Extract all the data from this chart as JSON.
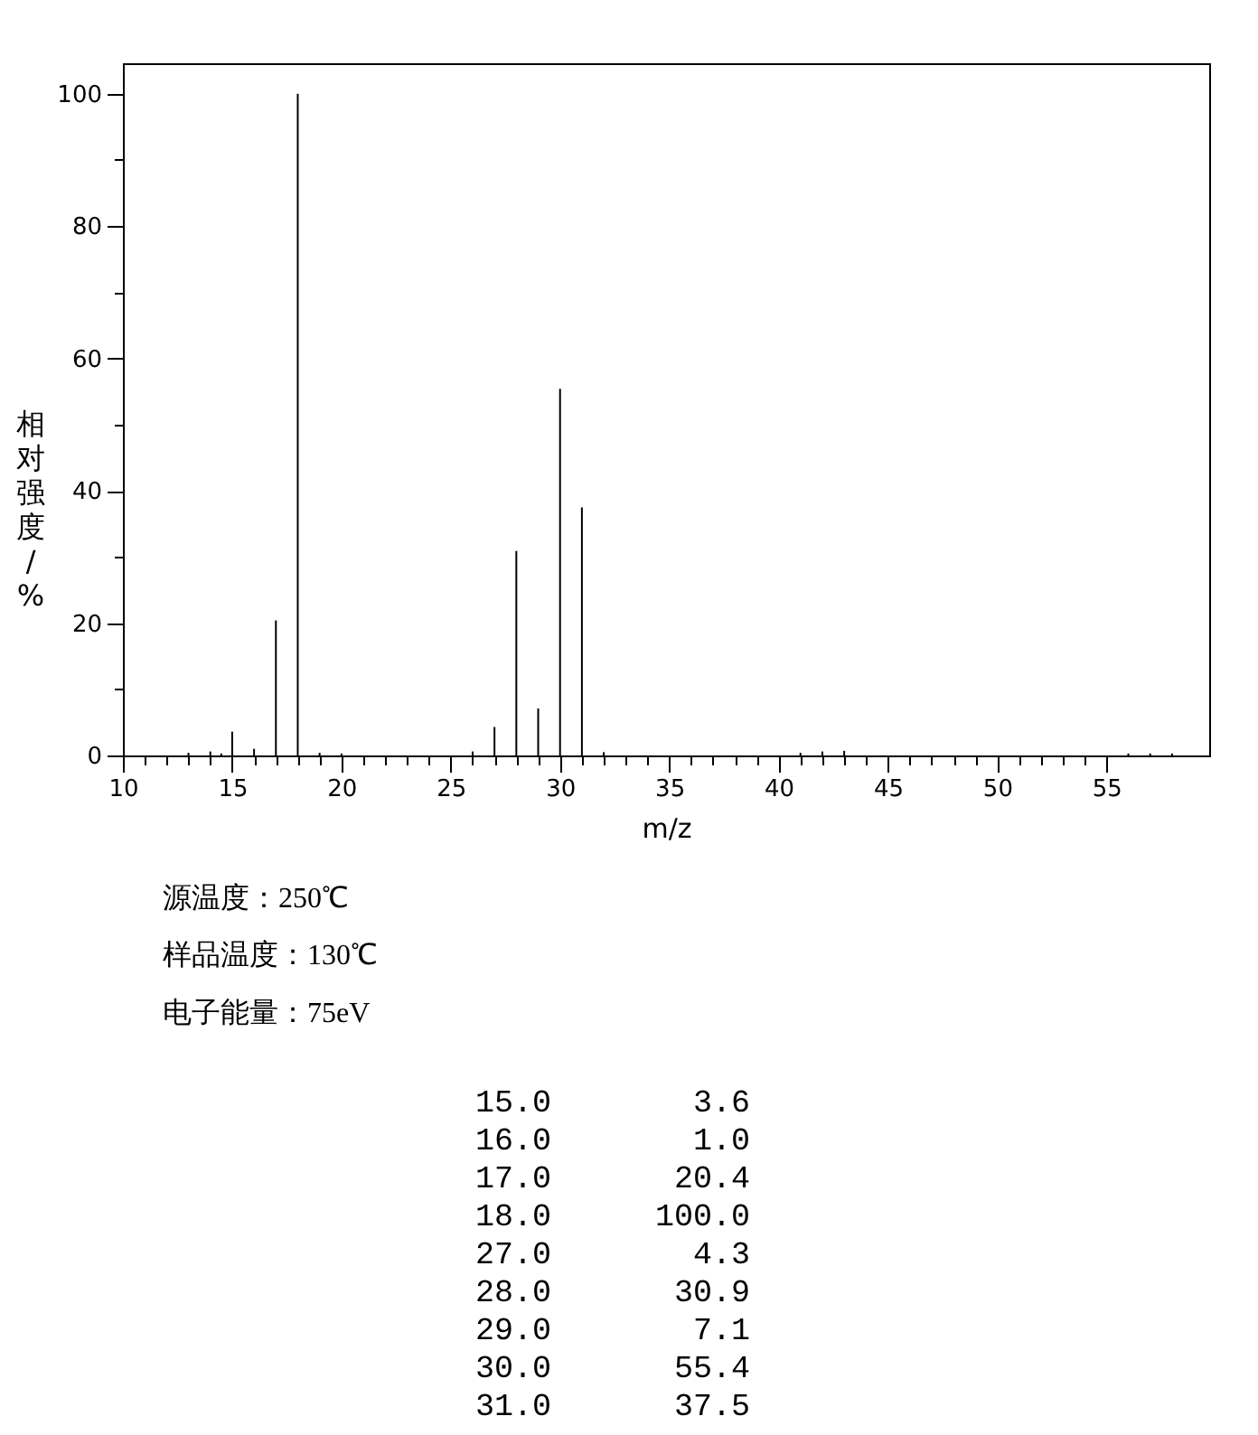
{
  "chart_data": {
    "type": "bar",
    "xlabel": "m/z",
    "ylabel": "相对强度/%",
    "x": [
      13,
      14,
      14.5,
      15,
      16,
      17,
      18,
      19,
      20,
      26,
      27,
      28,
      29,
      30,
      31,
      32,
      41,
      42,
      43,
      56,
      57,
      58
    ],
    "values": [
      0.4,
      0.6,
      0.3,
      3.6,
      1.0,
      20.4,
      100.0,
      0.4,
      0.3,
      0.6,
      4.3,
      30.9,
      7.1,
      55.4,
      37.5,
      0.5,
      0.4,
      0.6,
      0.7,
      0.3,
      0.3,
      0.3
    ],
    "color": "#000000",
    "xlim": [
      10,
      59.7
    ],
    "xticks": [
      10,
      {
        "value": 11,
        "label": null
      },
      {
        "value": 12,
        "label": null
      },
      {
        "value": 13,
        "label": null
      },
      {
        "value": 14,
        "label": null
      },
      15,
      {
        "value": 16,
        "label": null
      },
      {
        "value": 17,
        "label": null
      },
      {
        "value": 18,
        "label": null
      },
      {
        "value": 19,
        "label": null
      },
      20,
      {
        "value": 21,
        "label": null
      },
      {
        "value": 22,
        "label": null
      },
      {
        "value": 23,
        "label": null
      },
      {
        "value": 24,
        "label": null
      },
      25,
      {
        "value": 26,
        "label": null
      },
      {
        "value": 27,
        "label": null
      },
      {
        "value": 28,
        "label": null
      },
      {
        "value": 29,
        "label": null
      },
      30,
      {
        "value": 31,
        "label": null
      },
      {
        "value": 32,
        "label": null
      },
      {
        "value": 33,
        "label": null
      },
      {
        "value": 34,
        "label": null
      },
      35,
      {
        "value": 36,
        "label": null
      },
      {
        "value": 37,
        "label": null
      },
      {
        "value": 38,
        "label": null
      },
      {
        "value": 39,
        "label": null
      },
      40,
      {
        "value": 41,
        "label": null
      },
      {
        "value": 42,
        "label": null
      },
      {
        "value": 43,
        "label": null
      },
      {
        "value": 44,
        "label": null
      },
      45,
      {
        "value": 46,
        "label": null
      },
      {
        "value": 47,
        "label": null
      },
      {
        "value": 48,
        "label": null
      },
      {
        "value": 49,
        "label": null
      },
      50,
      {
        "value": 51,
        "label": null
      },
      {
        "value": 52,
        "label": null
      },
      {
        "value": 53,
        "label": null
      },
      {
        "value": 54,
        "label": null
      },
      55
    ],
    "ylim": [
      0,
      104.6
    ],
    "yticks": [
      0,
      {
        "value": 10,
        "label": null
      },
      20,
      {
        "value": 30,
        "label": null
      },
      40,
      {
        "value": 50,
        "label": null
      },
      60,
      {
        "value": 70,
        "label": null
      },
      80,
      {
        "value": 90,
        "label": null
      },
      100
    ],
    "annotations": [
      "源温度：250℃",
      "样品温度：130℃",
      "电子能量：75eV",
      "15.0",
      "3.6",
      "16.0",
      "1.0",
      "17.0",
      "20.4",
      "18.0",
      "100.0",
      "27.0",
      "4.3",
      "28.0",
      "30.9",
      "29.0",
      "7.1",
      "30.0",
      "55.4",
      "31.0",
      "37.5"
    ]
  }
}
